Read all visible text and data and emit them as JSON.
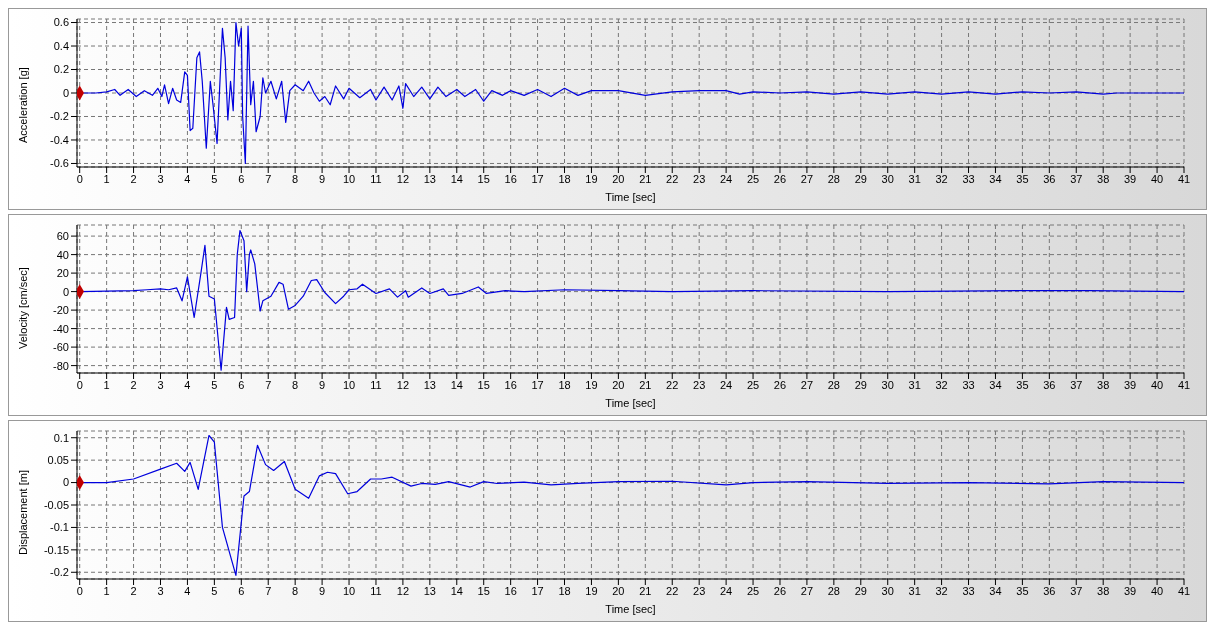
{
  "chart_data": [
    {
      "type": "line",
      "xlabel": "Time [sec]",
      "ylabel": "Acceleration [g]",
      "xlim": [
        -0.1,
        41
      ],
      "xticks": [
        0,
        1,
        2,
        3,
        4,
        5,
        6,
        7,
        8,
        9,
        10,
        11,
        12,
        13,
        14,
        15,
        16,
        17,
        18,
        19,
        20,
        21,
        22,
        23,
        24,
        25,
        26,
        27,
        28,
        29,
        30,
        31,
        32,
        33,
        34,
        35,
        36,
        37,
        38,
        39,
        40,
        41
      ],
      "ylim": [
        -0.63,
        0.63
      ],
      "yticks": [
        -0.6,
        -0.4,
        -0.2,
        0,
        0.2,
        0.4,
        0.6
      ],
      "grid": true,
      "line_style": "solid",
      "series": [
        {
          "type": "line",
          "color": "#0000dd",
          "x": [
            0,
            0.6,
            1,
            1.3,
            1.5,
            1.8,
            2.1,
            2.4,
            2.7,
            2.9,
            3.05,
            3.15,
            3.3,
            3.45,
            3.6,
            3.75,
            3.9,
            4.0,
            4.1,
            4.2,
            4.35,
            4.45,
            4.55,
            4.7,
            4.85,
            4.95,
            5.1,
            5.3,
            5.4,
            5.5,
            5.6,
            5.7,
            5.8,
            5.9,
            6.0,
            6.05,
            6.15,
            6.25,
            6.35,
            6.45,
            6.55,
            6.7,
            6.8,
            6.9,
            7.1,
            7.3,
            7.5,
            7.65,
            7.8,
            8.0,
            8.3,
            8.5,
            8.7,
            8.9,
            9.1,
            9.3,
            9.5,
            9.8,
            10.0,
            10.4,
            10.8,
            11.0,
            11.3,
            11.6,
            11.85,
            12.0,
            12.1,
            12.4,
            12.7,
            13.0,
            13.3,
            13.6,
            14.0,
            14.3,
            14.7,
            15.0,
            15.3,
            15.7,
            16.0,
            16.5,
            17,
            17.5,
            18,
            18.5,
            19,
            20,
            21,
            22,
            23,
            24,
            24.5,
            25,
            26,
            27,
            28,
            29,
            30,
            31,
            32,
            33,
            34,
            35,
            36,
            37,
            38,
            38.5,
            41
          ],
          "values": [
            0,
            0,
            0.01,
            0.03,
            -0.02,
            0.03,
            -0.03,
            0.02,
            -0.02,
            0.04,
            -0.03,
            0.07,
            -0.09,
            0.04,
            -0.06,
            -0.08,
            0.18,
            0.15,
            -0.32,
            -0.3,
            0.3,
            0.35,
            0.1,
            -0.47,
            0.1,
            -0.1,
            -0.43,
            0.55,
            0.3,
            -0.23,
            0.1,
            -0.15,
            0.6,
            0.4,
            0.55,
            -0.2,
            -0.6,
            0.57,
            -0.1,
            0.1,
            -0.33,
            -0.2,
            0.13,
            0,
            0.1,
            -0.05,
            0.1,
            -0.25,
            0.02,
            0.07,
            0.02,
            0.1,
            0,
            -0.07,
            -0.03,
            -0.1,
            0.06,
            -0.05,
            0.04,
            -0.04,
            0.03,
            -0.06,
            0.05,
            -0.06,
            0.06,
            -0.13,
            0.08,
            -0.03,
            0.05,
            -0.05,
            0.05,
            -0.03,
            0.03,
            -0.03,
            0.03,
            -0.07,
            0.02,
            -0.02,
            0.02,
            -0.02,
            0.03,
            -0.03,
            0.04,
            -0.02,
            0.02,
            0.02,
            -0.02,
            0.01,
            0.02,
            0.02,
            -0.01,
            0.01,
            0,
            0.01,
            -0.01,
            0.01,
            -0.01,
            0.01,
            -0.01,
            0.01,
            -0.01,
            0.01,
            0,
            0.01,
            -0.01,
            0,
            0
          ]
        },
        {
          "type": "scatter",
          "color": "#c00000",
          "marker": "diamond",
          "x": [
            0
          ],
          "values": [
            0
          ]
        }
      ]
    },
    {
      "type": "line",
      "xlabel": "Time [sec]",
      "ylabel": "Velocity [cm/sec]",
      "xlim": [
        -0.1,
        41
      ],
      "xticks": [
        0,
        1,
        2,
        3,
        4,
        5,
        6,
        7,
        8,
        9,
        10,
        11,
        12,
        13,
        14,
        15,
        16,
        17,
        18,
        19,
        20,
        21,
        22,
        23,
        24,
        25,
        26,
        27,
        28,
        29,
        30,
        31,
        32,
        33,
        34,
        35,
        36,
        37,
        38,
        39,
        40,
        41
      ],
      "ylim": [
        -88,
        72
      ],
      "yticks": [
        -80,
        -60,
        -40,
        -20,
        0,
        20,
        40,
        60
      ],
      "grid": true,
      "line_style": "solid",
      "series": [
        {
          "type": "line",
          "color": "#0000dd",
          "x": [
            0,
            2,
            2.5,
            3,
            3.3,
            3.6,
            3.8,
            4.0,
            4.25,
            4.5,
            4.65,
            4.8,
            5.0,
            5.25,
            5.45,
            5.55,
            5.75,
            5.85,
            5.95,
            6.1,
            6.2,
            6.3,
            6.35,
            6.5,
            6.7,
            6.8,
            7.1,
            7.4,
            7.55,
            7.75,
            8.0,
            8.3,
            8.6,
            8.8,
            9.1,
            9.5,
            9.8,
            10.0,
            10.3,
            10.5,
            11.0,
            11.5,
            11.8,
            12.1,
            12.2,
            12.7,
            13.0,
            13.5,
            13.7,
            14.2,
            14.8,
            15.1,
            15.8,
            16.5,
            18,
            20,
            22,
            25,
            30,
            35,
            37.5,
            41
          ],
          "values": [
            0,
            1,
            2,
            3,
            2,
            4,
            -10,
            16,
            -28,
            20,
            50,
            -5,
            -8,
            -85,
            -17,
            -30,
            -28,
            40,
            66,
            55,
            0,
            40,
            45,
            30,
            -21,
            -10,
            -5,
            10,
            8,
            -19,
            -15,
            -5,
            12,
            13,
            -1,
            -13,
            -5,
            2,
            3,
            8,
            -2,
            3,
            -6,
            1,
            -6,
            4,
            -2,
            3,
            -4,
            -2,
            5,
            -2,
            1,
            0,
            2,
            1,
            0,
            1,
            0,
            1,
            1,
            0
          ]
        },
        {
          "type": "scatter",
          "color": "#c00000",
          "marker": "diamond",
          "x": [
            0
          ],
          "values": [
            0
          ]
        }
      ]
    },
    {
      "type": "line",
      "xlabel": "Time [sec]",
      "ylabel": "Displacement [m]",
      "xlim": [
        -0.1,
        41
      ],
      "xticks": [
        0,
        1,
        2,
        3,
        4,
        5,
        6,
        7,
        8,
        9,
        10,
        11,
        12,
        13,
        14,
        15,
        16,
        17,
        18,
        19,
        20,
        21,
        22,
        23,
        24,
        25,
        26,
        27,
        28,
        29,
        30,
        31,
        32,
        33,
        34,
        35,
        36,
        37,
        38,
        39,
        40,
        41
      ],
      "ylim": [
        -0.215,
        0.115
      ],
      "yticks": [
        -0.2,
        -0.15,
        -0.1,
        -0.05,
        0,
        0.05,
        0.1
      ],
      "grid": true,
      "line_style": "solid",
      "series": [
        {
          "type": "line",
          "color": "#0000dd",
          "x": [
            0,
            1,
            2,
            3,
            3.6,
            3.9,
            4.1,
            4.4,
            4.8,
            5.0,
            5.3,
            5.8,
            6.1,
            6.3,
            6.6,
            6.9,
            7.2,
            7.6,
            8.0,
            8.5,
            8.9,
            9.2,
            9.5,
            9.95,
            10.3,
            10.8,
            11.2,
            11.6,
            12.3,
            12.7,
            13.2,
            13.7,
            14.5,
            15.0,
            15.5,
            16.5,
            17.5,
            18.5,
            20,
            22,
            24,
            25,
            27,
            30,
            33,
            36,
            38,
            41
          ],
          "values": [
            0,
            0,
            0.008,
            0.03,
            0.043,
            0.025,
            0.045,
            -0.015,
            0.105,
            0.09,
            -0.1,
            -0.207,
            -0.03,
            -0.02,
            0.083,
            0.04,
            0.027,
            0.047,
            -0.015,
            -0.035,
            0.015,
            0.023,
            0.02,
            -0.025,
            -0.02,
            0.008,
            0.008,
            0.012,
            -0.008,
            -0.002,
            -0.004,
            0.002,
            -0.01,
            0.002,
            -0.002,
            0.001,
            -0.005,
            -0.002,
            0.002,
            0.003,
            -0.005,
            0,
            0.002,
            -0.002,
            0,
            -0.003,
            0.002,
            0
          ]
        },
        {
          "type": "scatter",
          "color": "#c00000",
          "marker": "diamond",
          "x": [
            0
          ],
          "values": [
            0
          ]
        }
      ]
    }
  ]
}
